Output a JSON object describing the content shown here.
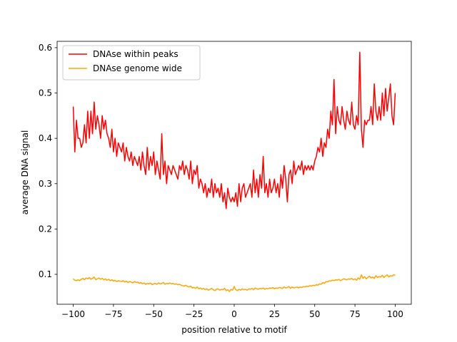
{
  "chart_data": {
    "type": "line",
    "xlabel": "position relative to motif",
    "ylabel": "average DNA signal",
    "x": [
      -100,
      -99,
      -98,
      -97,
      -96,
      -95,
      -94,
      -93,
      -92,
      -91,
      -90,
      -89,
      -88,
      -87,
      -86,
      -85,
      -84,
      -83,
      -82,
      -81,
      -80,
      -79,
      -78,
      -77,
      -76,
      -75,
      -74,
      -73,
      -72,
      -71,
      -70,
      -69,
      -68,
      -67,
      -66,
      -65,
      -64,
      -63,
      -62,
      -61,
      -60,
      -59,
      -58,
      -57,
      -56,
      -55,
      -54,
      -53,
      -52,
      -51,
      -50,
      -49,
      -48,
      -47,
      -46,
      -45,
      -44,
      -43,
      -42,
      -41,
      -40,
      -39,
      -38,
      -37,
      -36,
      -35,
      -34,
      -33,
      -32,
      -31,
      -30,
      -29,
      -28,
      -27,
      -26,
      -25,
      -24,
      -23,
      -22,
      -21,
      -20,
      -19,
      -18,
      -17,
      -16,
      -15,
      -14,
      -13,
      -12,
      -11,
      -10,
      -9,
      -8,
      -7,
      -6,
      -5,
      -4,
      -3,
      -2,
      -1,
      0,
      1,
      2,
      3,
      4,
      5,
      6,
      7,
      8,
      9,
      10,
      11,
      12,
      13,
      14,
      15,
      16,
      17,
      18,
      19,
      20,
      21,
      22,
      23,
      24,
      25,
      26,
      27,
      28,
      29,
      30,
      31,
      32,
      33,
      34,
      35,
      36,
      37,
      38,
      39,
      40,
      41,
      42,
      43,
      44,
      45,
      46,
      47,
      48,
      49,
      50,
      51,
      52,
      53,
      54,
      55,
      56,
      57,
      58,
      59,
      60,
      61,
      62,
      63,
      64,
      65,
      66,
      67,
      68,
      69,
      70,
      71,
      72,
      73,
      74,
      75,
      76,
      77,
      78,
      79,
      80,
      81,
      82,
      83,
      84,
      85,
      86,
      87,
      88,
      89,
      90,
      91,
      92,
      93,
      94,
      95,
      96,
      97,
      98,
      99,
      100
    ],
    "series": [
      {
        "name": "DNAse within peaks",
        "color": "#ff0000",
        "values": [
          0.47,
          0.37,
          0.44,
          0.4,
          0.4,
          0.38,
          0.39,
          0.43,
          0.39,
          0.46,
          0.4,
          0.46,
          0.41,
          0.48,
          0.42,
          0.45,
          0.43,
          0.4,
          0.45,
          0.42,
          0.44,
          0.41,
          0.4,
          0.38,
          0.42,
          0.37,
          0.4,
          0.36,
          0.39,
          0.38,
          0.37,
          0.39,
          0.35,
          0.38,
          0.36,
          0.35,
          0.37,
          0.34,
          0.36,
          0.35,
          0.34,
          0.36,
          0.33,
          0.37,
          0.34,
          0.32,
          0.38,
          0.33,
          0.36,
          0.34,
          0.37,
          0.32,
          0.35,
          0.33,
          0.31,
          0.41,
          0.32,
          0.35,
          0.3,
          0.34,
          0.33,
          0.32,
          0.34,
          0.33,
          0.32,
          0.31,
          0.34,
          0.33,
          0.35,
          0.32,
          0.34,
          0.33,
          0.31,
          0.35,
          0.3,
          0.33,
          0.32,
          0.34,
          0.29,
          0.31,
          0.3,
          0.28,
          0.3,
          0.27,
          0.29,
          0.28,
          0.31,
          0.27,
          0.3,
          0.28,
          0.29,
          0.27,
          0.3,
          0.26,
          0.28,
          0.245,
          0.29,
          0.27,
          0.26,
          0.27,
          0.26,
          0.28,
          0.25,
          0.3,
          0.26,
          0.29,
          0.3,
          0.27,
          0.28,
          0.29,
          0.3,
          0.27,
          0.33,
          0.28,
          0.31,
          0.27,
          0.32,
          0.29,
          0.36,
          0.28,
          0.3,
          0.27,
          0.31,
          0.28,
          0.29,
          0.31,
          0.28,
          0.3,
          0.27,
          0.32,
          0.29,
          0.34,
          0.31,
          0.26,
          0.32,
          0.33,
          0.3,
          0.35,
          0.32,
          0.33,
          0.34,
          0.33,
          0.35,
          0.32,
          0.34,
          0.33,
          0.34,
          0.33,
          0.34,
          0.33,
          0.35,
          0.36,
          0.38,
          0.37,
          0.4,
          0.36,
          0.39,
          0.38,
          0.42,
          0.4,
          0.46,
          0.43,
          0.53,
          0.41,
          0.47,
          0.44,
          0.43,
          0.47,
          0.44,
          0.42,
          0.46,
          0.44,
          0.43,
          0.48,
          0.43,
          0.42,
          0.45,
          0.43,
          0.59,
          0.42,
          0.38,
          0.44,
          0.43,
          0.44,
          0.44,
          0.47,
          0.43,
          0.52,
          0.46,
          0.44,
          0.47,
          0.44,
          0.5,
          0.45,
          0.51,
          0.46,
          0.49,
          0.52,
          0.45,
          0.43,
          0.5
        ]
      },
      {
        "name": "DNAse genome wide",
        "color": "#ffa500",
        "values": [
          0.09,
          0.087,
          0.086,
          0.088,
          0.086,
          0.089,
          0.091,
          0.088,
          0.092,
          0.09,
          0.093,
          0.089,
          0.091,
          0.094,
          0.088,
          0.09,
          0.092,
          0.089,
          0.091,
          0.088,
          0.09,
          0.087,
          0.089,
          0.086,
          0.088,
          0.085,
          0.087,
          0.084,
          0.086,
          0.085,
          0.084,
          0.086,
          0.083,
          0.085,
          0.082,
          0.084,
          0.083,
          0.081,
          0.084,
          0.082,
          0.083,
          0.08,
          0.082,
          0.079,
          0.081,
          0.078,
          0.08,
          0.079,
          0.081,
          0.077,
          0.079,
          0.08,
          0.078,
          0.081,
          0.079,
          0.08,
          0.082,
          0.078,
          0.08,
          0.079,
          0.081,
          0.079,
          0.08,
          0.078,
          0.079,
          0.077,
          0.078,
          0.076,
          0.075,
          0.074,
          0.076,
          0.073,
          0.072,
          0.074,
          0.07,
          0.071,
          0.069,
          0.072,
          0.068,
          0.07,
          0.067,
          0.069,
          0.066,
          0.068,
          0.065,
          0.067,
          0.069,
          0.066,
          0.064,
          0.067,
          0.068,
          0.065,
          0.067,
          0.066,
          0.069,
          0.064,
          0.066,
          0.062,
          0.067,
          0.065,
          0.073,
          0.066,
          0.064,
          0.067,
          0.065,
          0.068,
          0.066,
          0.067,
          0.065,
          0.068,
          0.067,
          0.069,
          0.066,
          0.07,
          0.068,
          0.067,
          0.069,
          0.068,
          0.07,
          0.067,
          0.069,
          0.068,
          0.07,
          0.069,
          0.071,
          0.068,
          0.07,
          0.069,
          0.071,
          0.07,
          0.069,
          0.072,
          0.07,
          0.071,
          0.073,
          0.069,
          0.072,
          0.07,
          0.071,
          0.072,
          0.07,
          0.072,
          0.071,
          0.073,
          0.072,
          0.074,
          0.073,
          0.075,
          0.074,
          0.076,
          0.075,
          0.077,
          0.076,
          0.079,
          0.078,
          0.082,
          0.08,
          0.084,
          0.083,
          0.086,
          0.085,
          0.087,
          0.086,
          0.088,
          0.087,
          0.089,
          0.086,
          0.088,
          0.09,
          0.089,
          0.088,
          0.09,
          0.089,
          0.091,
          0.088,
          0.09,
          0.087,
          0.092,
          0.089,
          0.099,
          0.091,
          0.095,
          0.09,
          0.093,
          0.096,
          0.092,
          0.094,
          0.091,
          0.097,
          0.093,
          0.095,
          0.094,
          0.098,
          0.093,
          0.096,
          0.099,
          0.094,
          0.097,
          0.096,
          0.099,
          0.098
        ]
      }
    ],
    "xlim": [
      -110,
      110
    ],
    "xticks": [
      {
        "value": -100,
        "label": "−100"
      },
      {
        "value": -75,
        "label": "−75"
      },
      {
        "value": -50,
        "label": "−50"
      },
      {
        "value": -25,
        "label": "−25"
      },
      0,
      25,
      50,
      75,
      100
    ],
    "ylim": [
      0.034,
      0.614
    ],
    "yticks": [
      0.1,
      0.2,
      0.3,
      0.4,
      0.5,
      0.6
    ],
    "grid": false,
    "legend": "upper left"
  }
}
